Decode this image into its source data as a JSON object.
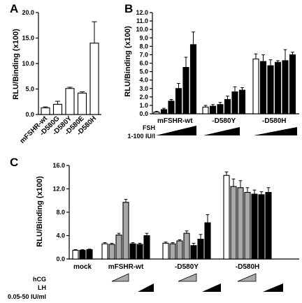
{
  "chart_data": [
    {
      "panel": "A",
      "type": "bar",
      "ylabel": "RLU/Binding (x100)",
      "ylim": [
        0,
        20
      ],
      "yticks": [
        "0.0",
        "5.0",
        "10.0",
        "15.0",
        "20.0"
      ],
      "categories": [
        "mFSHR-wt",
        "-D580G",
        "-D580Y",
        "-D580E",
        "-D580H"
      ],
      "values": [
        1.3,
        2.0,
        5.1,
        4.2,
        14.0
      ],
      "errors": [
        0.2,
        0.6,
        0.25,
        0.25,
        4.2
      ]
    },
    {
      "panel": "B",
      "type": "bar",
      "ylabel": "RLU/Binding (x100)",
      "ylim": [
        0,
        12
      ],
      "yticks": [
        "0.0",
        "1.0",
        "2.0",
        "3.0",
        "4.0",
        "5.0",
        "6.0",
        "7.0",
        "8.0",
        "9.0",
        "10.0",
        "11.0",
        "12.0"
      ],
      "groups": [
        {
          "label": "mFSHR-wt",
          "values": [
            0.2,
            0.5,
            1.5,
            3.0,
            5.5,
            8.2
          ],
          "errors": [
            0.1,
            0.15,
            0.2,
            0.6,
            1.2,
            1.5
          ]
        },
        {
          "label": "-D580Y",
          "values": [
            0.8,
            0.9,
            1.1,
            1.7,
            2.6,
            2.8
          ],
          "errors": [
            0.2,
            0.2,
            0.25,
            0.4,
            0.6,
            0.3
          ]
        },
        {
          "label": "-D580H",
          "values": [
            6.5,
            6.2,
            5.7,
            6.1,
            6.3,
            7.0
          ],
          "errors": [
            0.6,
            0.8,
            0.7,
            0.2,
            1.3,
            0.3
          ]
        }
      ],
      "condition_labels": [
        "FSH",
        "1-100 IU/l"
      ]
    },
    {
      "panel": "C",
      "type": "bar",
      "ylabel": "RLU/Binding (x100)",
      "ylim": [
        0,
        16
      ],
      "yticks": [
        "0.0",
        "4.0",
        "8.0",
        "12.0",
        "16.0"
      ],
      "groups": [
        {
          "label": "mock",
          "values": [
            1.5,
            1.5,
            1.6
          ],
          "errors": [
            0.1,
            0.1,
            0.1
          ]
        },
        {
          "label": "mFSHR-wt",
          "values": [
            2.6,
            2.5,
            4.1,
            9.7,
            2.6,
            2.5,
            4.0
          ],
          "errors": [
            0.2,
            0.2,
            0.3,
            0.5,
            0.2,
            0.2,
            0.4
          ]
        },
        {
          "label": "-D580Y",
          "values": [
            2.7,
            2.6,
            3.1,
            4.4,
            2.3,
            3.4,
            6.2
          ],
          "errors": [
            0.2,
            0.2,
            0.2,
            0.4,
            0.4,
            0.8,
            1.4
          ]
        },
        {
          "label": "-D580H",
          "values": [
            14.3,
            12.4,
            12.2,
            11.4,
            11.1,
            11.0,
            11.4
          ],
          "errors": [
            0.6,
            1.3,
            1.2,
            0.8,
            0.7,
            0.5,
            0.8
          ]
        }
      ],
      "condition_labels": [
        "hCG",
        "LH",
        "0.05-50 IU/ml"
      ]
    }
  ],
  "colors": {
    "white": "#ffffff",
    "black": "#000000",
    "gray": "#a9a9a9"
  }
}
